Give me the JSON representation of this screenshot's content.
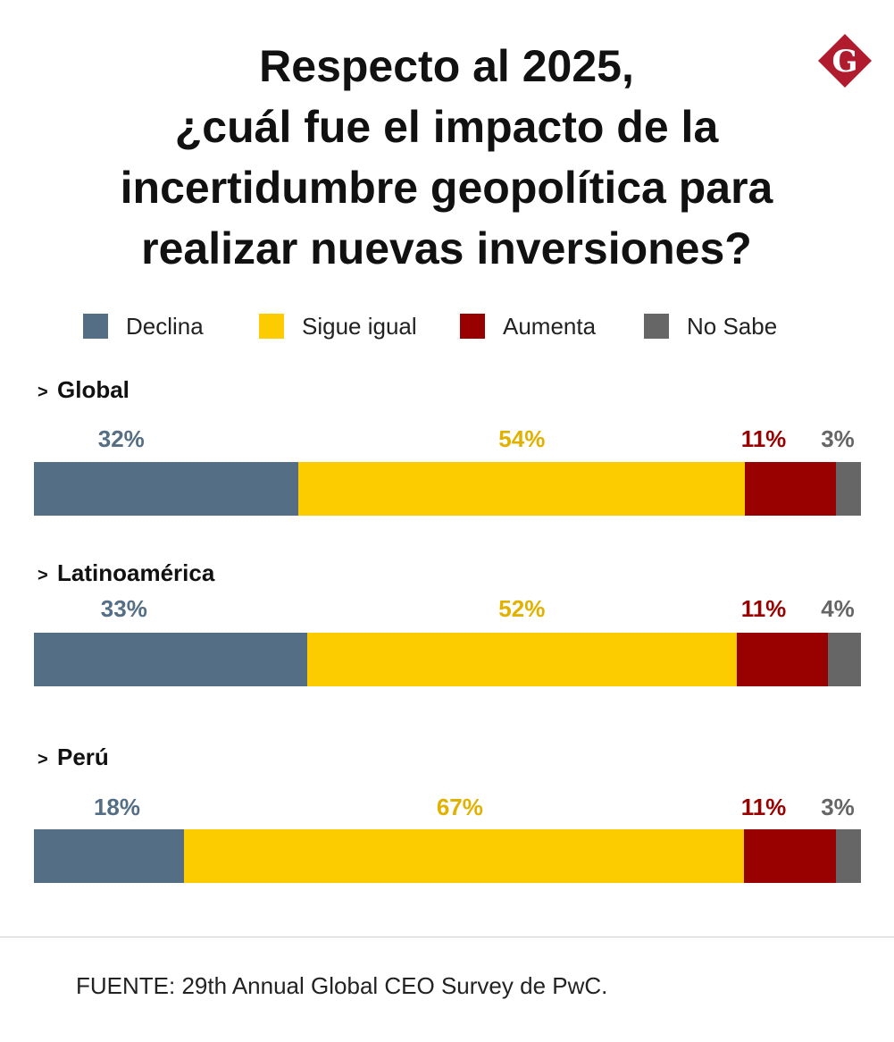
{
  "title": {
    "line1": "Respecto al 2025,",
    "line2": "¿cuál fue el impacto de la",
    "line3": "incertidumbre geopolítica para",
    "line4": "realizar nuevas inversiones?"
  },
  "logo": {
    "letter": "G",
    "color": "#B01C2E"
  },
  "chart_data": {
    "type": "bar",
    "orientation": "horizontal",
    "stacked": true,
    "title": "Respecto al 2025, ¿cuál fue el impacto de la incertidumbre geopolítica para realizar nuevas inversiones?",
    "categories": [
      "Global",
      "Latinoamérica",
      "Perú"
    ],
    "series": [
      {
        "name": "Declina",
        "color": "#546E86",
        "values": [
          32,
          33,
          18
        ],
        "labels": [
          "32%",
          "33%",
          "18%"
        ]
      },
      {
        "name": "Sigue igual",
        "color": "#FCCB00",
        "values": [
          54,
          52,
          67
        ],
        "labels": [
          "54%",
          "52%",
          "67%"
        ]
      },
      {
        "name": "Aumenta",
        "color": "#990000",
        "values": [
          11,
          11,
          11
        ],
        "labels": [
          "11%",
          "11%",
          "11%"
        ]
      },
      {
        "name": "No Sabe",
        "color": "#666666",
        "values": [
          3,
          4,
          3
        ],
        "labels": [
          "3%",
          "4%",
          "3%"
        ]
      }
    ],
    "label_colors": [
      "#546E86",
      "#E2B100",
      "#990000",
      "#666666"
    ],
    "xlim": [
      0,
      100
    ],
    "legend_position": "top",
    "grid": false
  },
  "group_marker": ">",
  "source": "FUENTE: 29th Annual Global CEO Survey de PwC."
}
